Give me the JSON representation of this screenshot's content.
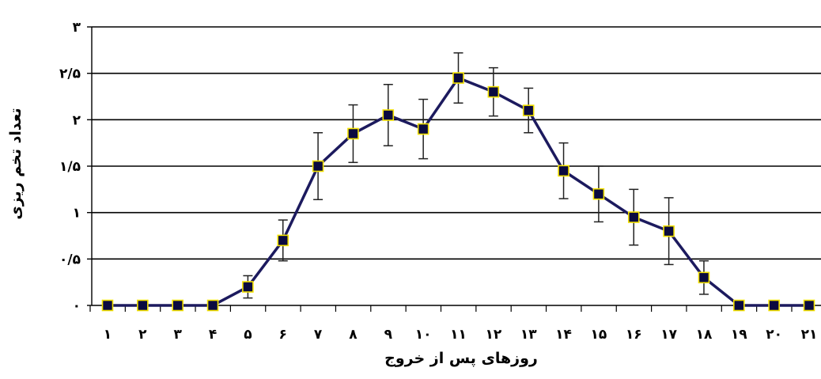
{
  "chart_data": {
    "type": "line",
    "title": "",
    "xlabel": "روزهای پس از خروج",
    "ylabel": "تعداد تخم ریزی",
    "x_tick_labels": [
      "۱",
      "۲",
      "۳",
      "۴",
      "۵",
      "۶",
      "۷",
      "۸",
      "۹",
      "۱۰",
      "۱۱",
      "۱۲",
      "۱۳",
      "۱۴",
      "۱۵",
      "۱۶",
      "۱۷",
      "۱۸",
      "۱۹",
      "۲۰",
      "۲۱"
    ],
    "y_tick_labels": [
      "۰",
      "۰/۵",
      "۱",
      "۱/۵",
      "۲",
      "۲/۵",
      "۳"
    ],
    "x": [
      1,
      2,
      3,
      4,
      5,
      6,
      7,
      8,
      9,
      10,
      11,
      12,
      13,
      14,
      15,
      16,
      17,
      18,
      19,
      20,
      21
    ],
    "ylim": [
      0,
      3
    ],
    "grid": true,
    "series": [
      {
        "values": [
          0,
          0,
          0,
          0,
          0.2,
          0.7,
          1.5,
          1.85,
          2.05,
          1.9,
          2.45,
          2.3,
          2.1,
          1.45,
          1.2,
          0.95,
          0.8,
          0.3,
          0,
          0,
          0
        ],
        "error": [
          0,
          0,
          0,
          0,
          0.12,
          0.22,
          0.36,
          0.31,
          0.33,
          0.32,
          0.27,
          0.26,
          0.24,
          0.3,
          0.3,
          0.3,
          0.36,
          0.18,
          0,
          0,
          0
        ],
        "line_color": "#1c1a5e",
        "marker_color": "#0a0a40",
        "marker_edge_color": "#f2e000"
      }
    ]
  }
}
